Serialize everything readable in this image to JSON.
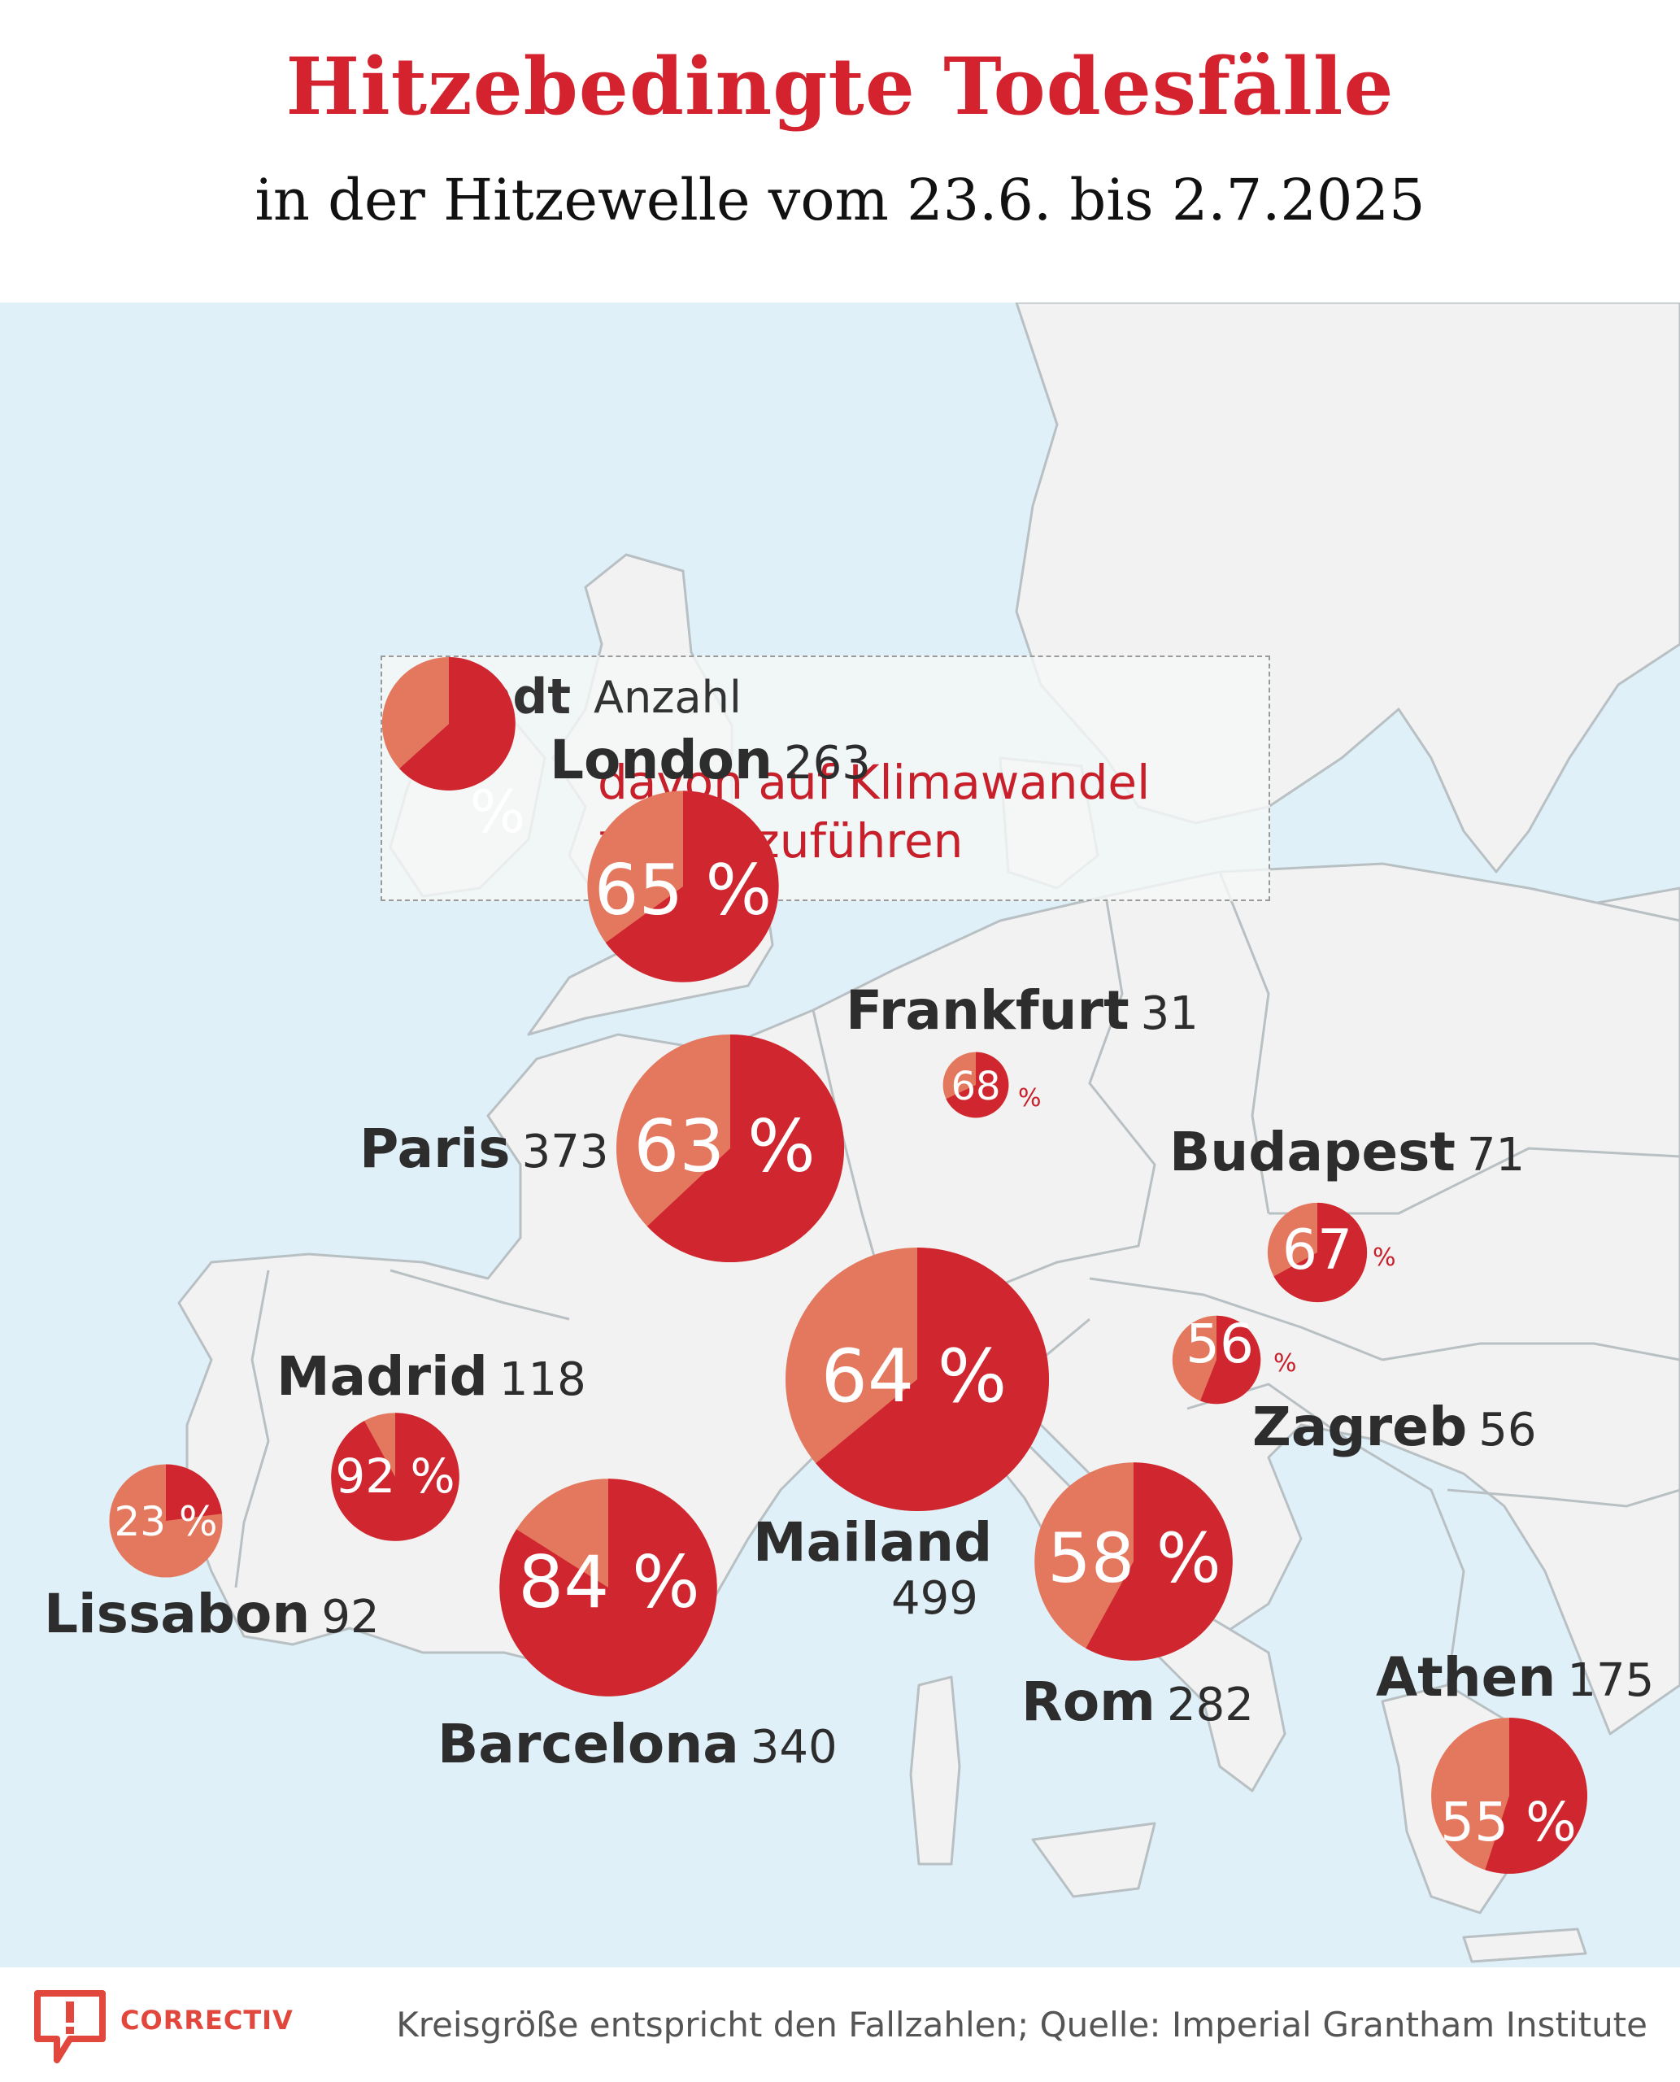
{
  "title": "Hitzebedingte Todesfälle",
  "subtitle": "in der Hitzewelle vom 23.6. bis 2.7.2025",
  "legend": {
    "city_label": "Stadt",
    "count_label": "Anzahl",
    "pct_symbol": "%",
    "description": "davon auf Klimawandel zurückzuführen"
  },
  "colors": {
    "climate_share": "#d0262f",
    "other_share": "#e4785f",
    "title_red": "#d4232f",
    "sea": "#dff0f8",
    "land": "#f2f2f2",
    "border": "#b8c0c4"
  },
  "cities": [
    {
      "name": "London",
      "count": "263",
      "pct": 65,
      "pct_label": "65 %"
    },
    {
      "name": "Frankfurt",
      "count": "31",
      "pct": 68,
      "pct_label": "68",
      "pct_sign": "%"
    },
    {
      "name": "Paris",
      "count": "373",
      "pct": 63,
      "pct_label": "63 %"
    },
    {
      "name": "Budapest",
      "count": "71",
      "pct": 67,
      "pct_label": "67",
      "pct_sign": "%"
    },
    {
      "name": "Zagreb",
      "count": "56",
      "pct": 56,
      "pct_label": "56",
      "pct_sign": "%"
    },
    {
      "name": "Madrid",
      "count": "118",
      "pct": 92,
      "pct_label": "92 %"
    },
    {
      "name": "Mailand",
      "count": "499",
      "pct": 64,
      "pct_label": "64 %"
    },
    {
      "name": "Lissabon",
      "count": "92",
      "pct": 23,
      "pct_label": "23 %"
    },
    {
      "name": "Barcelona",
      "count": "340",
      "pct": 84,
      "pct_label": "84 %"
    },
    {
      "name": "Rom",
      "count": "282",
      "pct": 58,
      "pct_label": "58 %"
    },
    {
      "name": "Athen",
      "count": "175",
      "pct": 55,
      "pct_label": "55 %"
    }
  ],
  "footer": {
    "logo": "CORRECTIV",
    "source": "Kreisgröße entspricht den Fallzahlen; Quelle: Imperial Grantham Institute"
  }
}
